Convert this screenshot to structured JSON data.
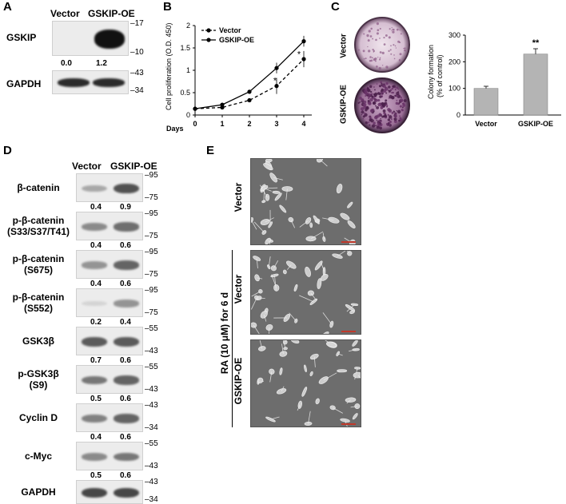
{
  "panels": {
    "A": {
      "letter": "A",
      "columns": [
        "Vector",
        "GSKIP-OE"
      ],
      "rows": [
        {
          "label": "GSKIP",
          "markers": [
            "17",
            "10"
          ],
          "quant": [
            "0.0",
            "1.2"
          ]
        },
        {
          "label": "GAPDH",
          "markers": [
            "43",
            "34"
          ]
        }
      ]
    },
    "B": {
      "letter": "B"
    },
    "C": {
      "letter": "C",
      "dish_labels": [
        "Vector",
        "GSKIP-OE"
      ]
    },
    "D": {
      "letter": "D",
      "columns": [
        "Vector",
        "GSKIP-OE"
      ],
      "rows": [
        {
          "label": "β-catenin",
          "markers": [
            "95",
            "75"
          ],
          "quant": [
            "0.4",
            "0.9"
          ],
          "v": 0.35,
          "g": 0.8
        },
        {
          "label": "p-β-catenin\n(S33/S37/T41)",
          "markers": [
            "95",
            "75"
          ],
          "quant": [
            "0.4",
            "0.6"
          ],
          "v": 0.5,
          "g": 0.65
        },
        {
          "label": "p-β-catenin\n(S675)",
          "markers": [
            "95",
            "75"
          ],
          "quant": [
            "0.4",
            "0.6"
          ],
          "v": 0.45,
          "g": 0.7
        },
        {
          "label": "p-β-catenin\n(S552)",
          "markers": [
            "95",
            "75"
          ],
          "quant": [
            "0.2",
            "0.4"
          ],
          "v": 0.08,
          "g": 0.45
        },
        {
          "label": "GSK3β",
          "markers": [
            "55",
            "43"
          ],
          "quant": [
            "0.7",
            "0.6"
          ],
          "v": 0.75,
          "g": 0.75
        },
        {
          "label": "p-GSK3β\n(S9)",
          "markers": [
            "55",
            "43"
          ],
          "quant": [
            "0.5",
            "0.6"
          ],
          "v": 0.6,
          "g": 0.7
        },
        {
          "label": "Cyclin D",
          "markers": [
            "43",
            "34"
          ],
          "quant": [
            "0.4",
            "0.6"
          ],
          "v": 0.55,
          "g": 0.7
        },
        {
          "label": "c-Myc",
          "markers": [
            "55",
            "43"
          ],
          "quant": [
            "0.5",
            "0.6"
          ],
          "v": 0.5,
          "g": 0.6
        },
        {
          "label": "GAPDH",
          "markers": [
            "43",
            "34"
          ],
          "v": 0.85,
          "g": 0.85
        }
      ]
    },
    "E": {
      "letter": "E",
      "top_label": "Vector",
      "treatment_label": "RA (10 μM) for 6 d",
      "lower_labels": [
        "Vector",
        "GSKIP-OE"
      ]
    }
  },
  "chart_data": [
    {
      "type": "line",
      "x": [
        0,
        1,
        2,
        3,
        4
      ],
      "xlabel": "Days",
      "ylabel": "Cell proliferation (O.D. 450)",
      "ylim": [
        0,
        2
      ],
      "yticks": [
        "0",
        "0.5",
        "1",
        "1.5",
        "2"
      ],
      "legend": "top-left",
      "series": [
        {
          "name": "Vector",
          "style": "dashed",
          "values": [
            0.14,
            0.17,
            0.33,
            0.65,
            1.25
          ]
        },
        {
          "name": "GSKIP-OE",
          "style": "solid",
          "values": [
            0.14,
            0.23,
            0.52,
            1.05,
            1.65
          ]
        }
      ],
      "annotations": [
        "*",
        "*"
      ]
    },
    {
      "type": "bar",
      "categories": [
        "Vector",
        "GSKIP-OE"
      ],
      "values": [
        100,
        229
      ],
      "errors": [
        8,
        20
      ],
      "ylabel": "Colony formation\n(% of control)",
      "ylim": [
        0,
        300
      ],
      "yticks": [
        "0",
        "100",
        "200",
        "300"
      ],
      "annotations": [
        "**"
      ],
      "bar_color": "#b4b4b4"
    }
  ]
}
